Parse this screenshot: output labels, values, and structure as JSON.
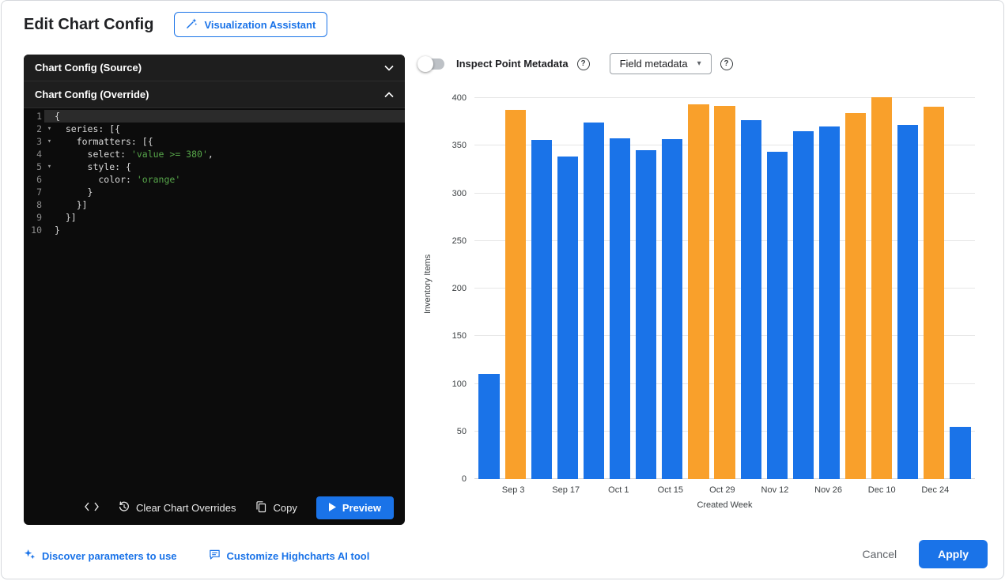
{
  "header": {
    "title": "Edit Chart Config",
    "assistant_button_label": "Visualization Assistant"
  },
  "editor": {
    "source_header": "Chart Config (Source)",
    "override_header": "Chart Config (Override)",
    "toolbar": {
      "clear_label": "Clear Chart Overrides",
      "copy_label": "Copy",
      "preview_label": "Preview"
    },
    "code_lines": [
      {
        "n": 1,
        "active": true,
        "fold": false,
        "parts": [
          {
            "t": "{",
            "c": "plain"
          }
        ]
      },
      {
        "n": 2,
        "fold": true,
        "parts": [
          {
            "t": "  series: [{",
            "c": "plain"
          }
        ]
      },
      {
        "n": 3,
        "fold": true,
        "parts": [
          {
            "t": "    formatters: [{",
            "c": "plain"
          }
        ]
      },
      {
        "n": 4,
        "fold": false,
        "parts": [
          {
            "t": "      select: ",
            "c": "plain"
          },
          {
            "t": "'value >= 380'",
            "c": "string"
          },
          {
            "t": ",",
            "c": "plain"
          }
        ]
      },
      {
        "n": 5,
        "fold": true,
        "parts": [
          {
            "t": "      style: {",
            "c": "plain"
          }
        ]
      },
      {
        "n": 6,
        "fold": false,
        "parts": [
          {
            "t": "        color: ",
            "c": "plain"
          },
          {
            "t": "'orange'",
            "c": "string"
          }
        ]
      },
      {
        "n": 7,
        "fold": false,
        "parts": [
          {
            "t": "      }",
            "c": "plain"
          }
        ]
      },
      {
        "n": 8,
        "fold": false,
        "parts": [
          {
            "t": "    }]",
            "c": "plain"
          }
        ]
      },
      {
        "n": 9,
        "fold": false,
        "parts": [
          {
            "t": "  }]",
            "c": "plain"
          }
        ]
      },
      {
        "n": 10,
        "fold": false,
        "parts": [
          {
            "t": "}",
            "c": "plain"
          }
        ]
      }
    ]
  },
  "controls": {
    "inspect_toggle_label": "Inspect Point Metadata",
    "inspect_toggle_state": "off",
    "field_metadata_label": "Field metadata"
  },
  "chart_data": {
    "type": "bar",
    "title": "",
    "xlabel": "Created Week",
    "ylabel": "Inventory Items",
    "ylim": [
      0,
      410
    ],
    "yticks": [
      0,
      50,
      100,
      150,
      200,
      250,
      300,
      350,
      400
    ],
    "grid": "horizontal",
    "x_tick_labels": [
      "",
      "Sep 3",
      "",
      "Sep 17",
      "",
      "Oct 1",
      "",
      "Oct 15",
      "",
      "Oct 29",
      "",
      "Nov 12",
      "",
      "Nov 26",
      "",
      "Dec 10",
      "",
      "Dec 24",
      ""
    ],
    "values": [
      110,
      388,
      356,
      339,
      374,
      358,
      345,
      357,
      393,
      392,
      377,
      344,
      365,
      370,
      384,
      401,
      372,
      391,
      55
    ],
    "highlight_rule": "value >= 380",
    "threshold": 380,
    "bar_color": "#1A73E8",
    "highlight_color": "#F9A02B"
  },
  "footer": {
    "discover_link_label": "Discover parameters to use",
    "customize_link_label": "Customize Highcharts AI tool",
    "cancel_label": "Cancel",
    "apply_label": "Apply"
  },
  "icons": {
    "fold_open": "▾",
    "caret_down": "▾",
    "help": "?"
  },
  "colors": {
    "accent": "#1A73E8",
    "bar_blue": "#1A73E8",
    "bar_orange": "#F9A02B",
    "code_string_green": "#57A64A"
  }
}
